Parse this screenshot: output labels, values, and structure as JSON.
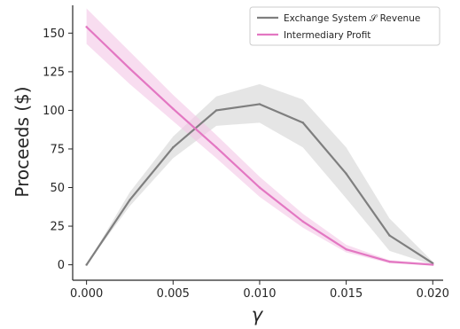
{
  "chart_data": {
    "type": "line",
    "title": "",
    "xlabel": "γ",
    "ylabel": "Proceeds ($)",
    "xlim": [
      -0.0008,
      0.0206
    ],
    "ylim": [
      -10,
      168
    ],
    "x_ticks": [
      0.0,
      0.005,
      0.01,
      0.015,
      0.02
    ],
    "x_tick_labels": [
      "0.000",
      "0.005",
      "0.010",
      "0.015",
      "0.020"
    ],
    "y_ticks": [
      0,
      25,
      50,
      75,
      100,
      125,
      150
    ],
    "y_tick_labels": [
      "0",
      "25",
      "50",
      "75",
      "100",
      "125",
      "150"
    ],
    "grid": false,
    "legend_position": "top-right",
    "x": [
      0.0,
      0.0025,
      0.005,
      0.0075,
      0.01,
      0.0125,
      0.015,
      0.0175,
      0.02
    ],
    "series": [
      {
        "name": "Exchange System 𝒮 Revenue",
        "color": "#7f7f7f",
        "band_color": "#d3d3d3",
        "values": [
          0,
          42,
          76,
          100,
          104,
          92,
          59,
          19,
          1
        ],
        "lower": [
          0,
          38,
          69,
          90,
          92,
          76,
          43,
          9,
          0
        ],
        "upper": [
          0,
          47,
          83,
          109,
          117,
          107,
          76,
          30,
          2
        ]
      },
      {
        "name": "Intermediary Profit",
        "color": "#e377c2",
        "band_color": "#f4c6e6",
        "values": [
          154,
          127,
          101,
          76,
          50,
          28,
          10,
          2,
          0
        ],
        "lower": [
          143,
          117,
          93,
          69,
          44,
          24,
          8,
          1,
          0
        ],
        "upper": [
          166,
          138,
          110,
          84,
          57,
          33,
          13,
          3,
          1
        ]
      }
    ]
  }
}
